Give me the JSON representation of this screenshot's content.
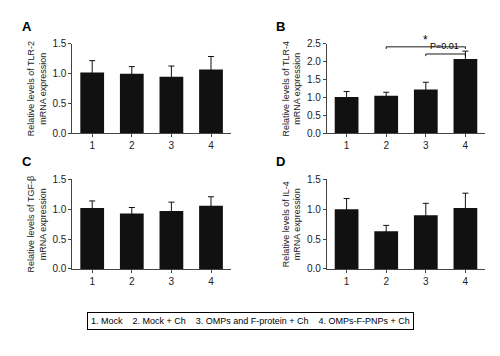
{
  "chart_data": [
    {
      "type": "bar",
      "title": "A",
      "ylabel": "Relative levels of TLR-2\nmRNA expression",
      "categories": [
        "1",
        "2",
        "3",
        "4"
      ],
      "values": [
        1.02,
        1.0,
        0.95,
        1.07
      ],
      "errors": [
        0.2,
        0.12,
        0.18,
        0.22
      ],
      "color": "#111111",
      "grid": false,
      "ylim": [
        0.0,
        1.5
      ],
      "yticks": [
        {
          "value": 0.0,
          "label": "0.0"
        },
        {
          "value": 0.5,
          "label": "0.5"
        },
        {
          "value": 1.0,
          "label": "1.0"
        },
        {
          "value": 1.5,
          "label": "1.5"
        }
      ]
    },
    {
      "type": "bar",
      "title": "B",
      "ylabel": "Relative levels of TLR-4\nmRNA expression",
      "categories": [
        "1",
        "2",
        "3",
        "4"
      ],
      "values": [
        1.02,
        1.05,
        1.23,
        2.08
      ],
      "errors": [
        0.15,
        0.1,
        0.2,
        0.22
      ],
      "color": "#111111",
      "grid": false,
      "ylim": [
        0.0,
        2.5
      ],
      "yticks": [
        {
          "value": 0.0,
          "label": "0.0"
        },
        {
          "value": 0.5,
          "label": "0.5"
        },
        {
          "value": 1.0,
          "label": "1.0"
        },
        {
          "value": 1.5,
          "label": "1.5"
        },
        {
          "value": 2.0,
          "label": "2.0"
        },
        {
          "value": 2.5,
          "label": "2.5"
        }
      ],
      "annotations": [
        {
          "text": "*",
          "x1": "2",
          "x2": "4",
          "y": 2.42,
          "align": "center"
        },
        {
          "text": "P=0.01",
          "x1": "3",
          "x2": "4",
          "y": 2.22,
          "align": "right"
        }
      ]
    },
    {
      "type": "bar",
      "title": "C",
      "ylabel": "Relative levels of TGF-β\nmRNA expression",
      "categories": [
        "1",
        "2",
        "3",
        "4"
      ],
      "values": [
        1.02,
        0.93,
        0.97,
        1.06
      ],
      "errors": [
        0.12,
        0.1,
        0.15,
        0.15
      ],
      "color": "#111111",
      "grid": false,
      "ylim": [
        0.0,
        1.5
      ],
      "yticks": [
        {
          "value": 0.0,
          "label": "0.0"
        },
        {
          "value": 0.5,
          "label": "0.5"
        },
        {
          "value": 1.0,
          "label": "1.0"
        },
        {
          "value": 1.5,
          "label": "1.5"
        }
      ]
    },
    {
      "type": "bar",
      "title": "D",
      "ylabel": "Relative levels of IL-4\nmRNA expression",
      "categories": [
        "1",
        "2",
        "3",
        "4"
      ],
      "values": [
        1.0,
        0.63,
        0.9,
        1.02
      ],
      "errors": [
        0.18,
        0.1,
        0.2,
        0.25
      ],
      "color": "#111111",
      "grid": false,
      "ylim": [
        0.0,
        1.5
      ],
      "yticks": [
        {
          "value": 0.0,
          "label": "0.0"
        },
        {
          "value": 0.5,
          "label": "0.5"
        },
        {
          "value": 1.0,
          "label": "1.0"
        },
        {
          "value": 1.5,
          "label": "1.5"
        }
      ]
    }
  ],
  "annotations": [
    {
      "text": "1. Mock    2. Mock + Ch    3. OMPs and F-protein + Ch    4. OMPs-F-PNPs + Ch"
    }
  ]
}
